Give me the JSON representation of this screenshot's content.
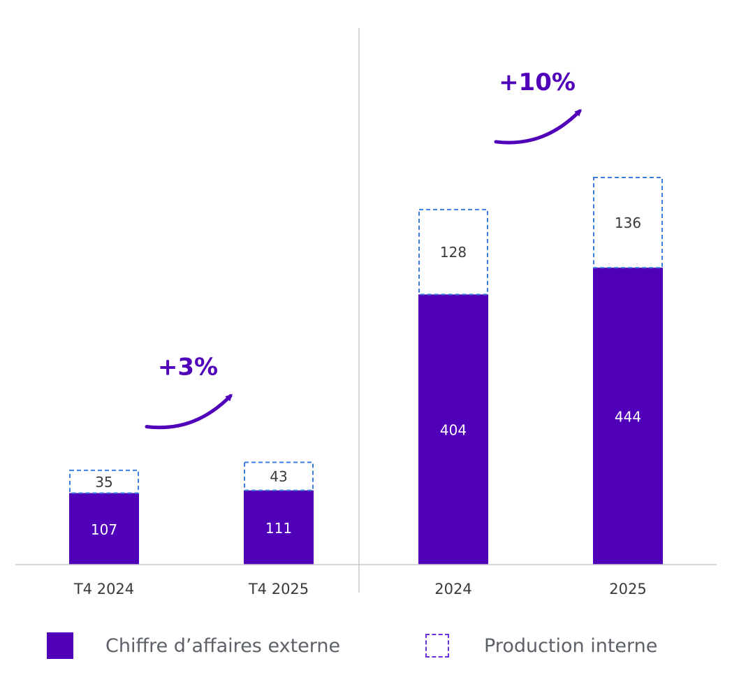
{
  "chart_data": {
    "type": "bar",
    "stacked": true,
    "categories": [
      "T4 2024",
      "T4 2025",
      "2024",
      "2025"
    ],
    "series": [
      {
        "name": "Chiffre d’affaires externe",
        "values": [
          107,
          111,
          404,
          444
        ],
        "style": "solid",
        "color": "#5000b9"
      },
      {
        "name": "Production interne",
        "values": [
          35,
          43,
          128,
          136
        ],
        "style": "dashed",
        "color": "#3b7ee0"
      }
    ],
    "groups": [
      {
        "categories": [
          "T4 2024",
          "T4 2025"
        ],
        "growth_label": "+3%"
      },
      {
        "categories": [
          "2024",
          "2025"
        ],
        "growth_label": "+10%"
      }
    ],
    "legend_position": "bottom",
    "grid": false
  },
  "legend": {
    "external_label": "Chiffre d’affaires externe",
    "internal_label": "Production interne"
  },
  "colors": {
    "accent": "#5000b9",
    "dashed_outline": "#3b7ee0",
    "axis": "#c9ccd3",
    "text": "#3a3a3a"
  }
}
